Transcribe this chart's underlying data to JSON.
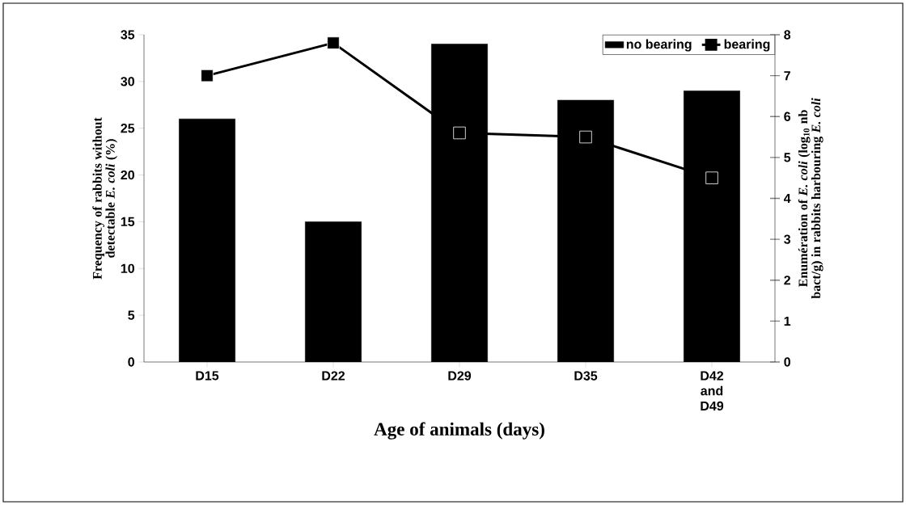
{
  "chart_data": {
    "type": "bar",
    "xlabel": "Age of animals (days)",
    "ylabel": "Frequency of rabbits without detectable *E. coli* (%)",
    "y2label": "Enumération of *E. coli* (log$_{10}$ nb bact/g) in rabbits harbouring *E. coli*",
    "categories": [
      "D15",
      "D22",
      "D29",
      "D35",
      "D42 and D49"
    ],
    "series": [
      {
        "name": "no bearing",
        "color": "#000000",
        "values": [
          26,
          15,
          34,
          28,
          29
        ]
      },
      {
        "name": "bearing",
        "type": "line",
        "axis": "y2",
        "color": "#000000",
        "values": [
          7.0,
          7.8,
          5.6,
          5.5,
          4.5
        ]
      }
    ],
    "ylim": [
      0,
      35
    ],
    "yticks": [
      0,
      5,
      10,
      15,
      20,
      25,
      30,
      35
    ],
    "y2lim": [
      0,
      8
    ],
    "y2ticks": [
      0,
      1,
      2,
      3,
      4,
      5,
      6,
      7,
      8
    ],
    "legend": "top right",
    "marker": "square",
    "line_style": "solid"
  }
}
